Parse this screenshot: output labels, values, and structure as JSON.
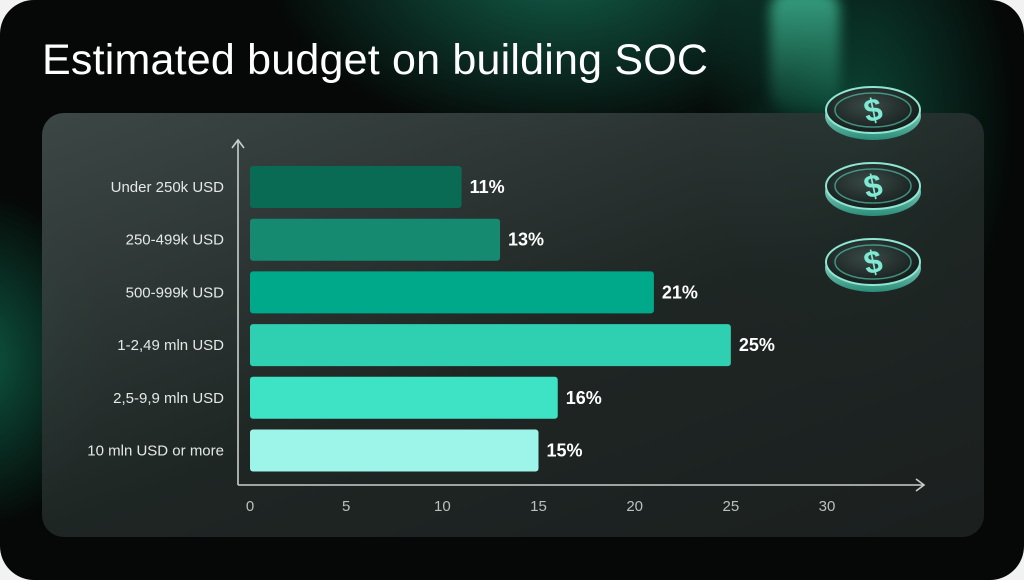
{
  "header": {
    "title": "Estimated budget on building SOC"
  },
  "chart_data": {
    "type": "bar",
    "orientation": "horizontal",
    "title": "Estimated budget on building SOC",
    "categories": [
      "Under 250k USD",
      "250-499k USD",
      "500-999k USD",
      "1-2,49 mln USD",
      "2,5-9,9 mln USD",
      "10 mln USD or more"
    ],
    "values": [
      11,
      13,
      21,
      25,
      16,
      15
    ],
    "value_labels": [
      "11%",
      "13%",
      "21%",
      "25%",
      "16%",
      "15%"
    ],
    "xlim": [
      0,
      30
    ],
    "xticks": [
      "0",
      "5",
      "10",
      "15",
      "20",
      "25",
      "30"
    ],
    "xlabel": "",
    "ylabel": "",
    "grid": false,
    "legend": "none",
    "bar_colors": [
      "#0a6b55",
      "#158a70",
      "#00a98a",
      "#2fd0b2",
      "#3ee3c5",
      "#9cf5e8"
    ]
  },
  "decor": {
    "icon": "dollar-coin-icon",
    "coin_count": 3,
    "accent": "#3fd8b8"
  }
}
